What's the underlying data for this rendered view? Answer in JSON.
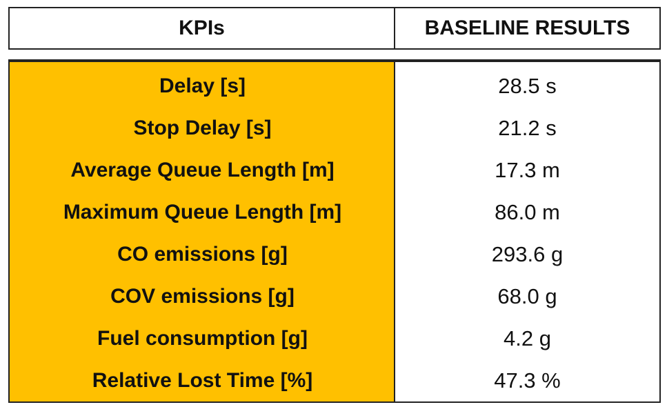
{
  "table": {
    "header": [
      "KPIs",
      "BASELINE RESULTS"
    ],
    "rows": [
      [
        "Delay [s]",
        "28.5 s"
      ],
      [
        "Stop Delay [s]",
        "21.2 s"
      ],
      [
        "Average Queue Length [m]",
        "17.3 m"
      ],
      [
        "Maximum Queue Length [m]",
        "86.0 m"
      ],
      [
        "CO emissions [g]",
        "293.6 g"
      ],
      [
        "COV emissions [g]",
        "68.0 g"
      ],
      [
        "Fuel consumption [g]",
        "4.2 g"
      ],
      [
        "Relative Lost Time [%]",
        "47.3 %"
      ]
    ]
  }
}
